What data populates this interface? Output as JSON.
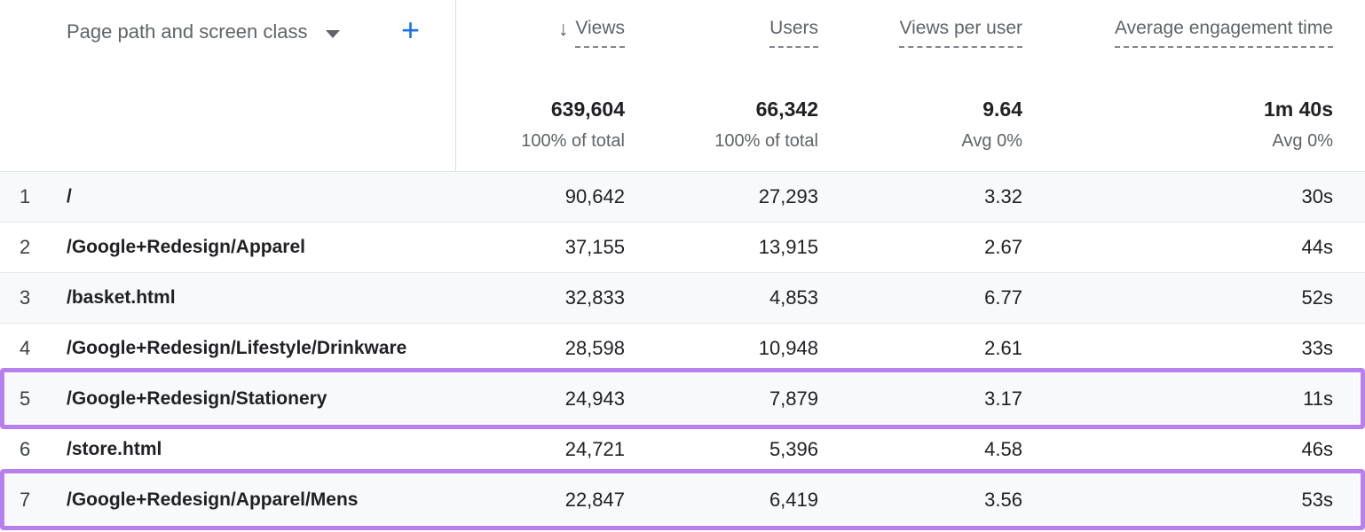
{
  "colors": {
    "highlight_purple": "#b880ef",
    "add_button_blue": "#1a73e8",
    "header_gray": "#5f6368",
    "row_alt_gray": "#f8f9fa"
  },
  "table": {
    "dimension_header": {
      "label": "Page path and screen class",
      "add_label": "+"
    },
    "columns": [
      {
        "label": "Views",
        "sort_arrow": "↓",
        "total": "639,604",
        "subtotal": "100% of total"
      },
      {
        "label": "Users",
        "sort_arrow": "",
        "total": "66,342",
        "subtotal": "100% of total"
      },
      {
        "label": "Views per user",
        "sort_arrow": "",
        "total": "9.64",
        "subtotal": "Avg 0%"
      },
      {
        "label": "Average engagement time",
        "sort_arrow": "",
        "total": "1m 40s",
        "subtotal": "Avg 0%"
      }
    ],
    "rows": [
      {
        "index": "1",
        "path": "/",
        "views": "90,642",
        "users": "27,293",
        "views_per_user": "3.32",
        "avg_engagement_time": "30s",
        "highlighted": false
      },
      {
        "index": "2",
        "path": "/Google+Redesign/Apparel",
        "views": "37,155",
        "users": "13,915",
        "views_per_user": "2.67",
        "avg_engagement_time": "44s",
        "highlighted": false
      },
      {
        "index": "3",
        "path": "/basket.html",
        "views": "32,833",
        "users": "4,853",
        "views_per_user": "6.77",
        "avg_engagement_time": "52s",
        "highlighted": false
      },
      {
        "index": "4",
        "path": "/Google+Redesign/Lifestyle/Drinkware",
        "views": "28,598",
        "users": "10,948",
        "views_per_user": "2.61",
        "avg_engagement_time": "33s",
        "highlighted": false
      },
      {
        "index": "5",
        "path": "/Google+Redesign/Stationery",
        "views": "24,943",
        "users": "7,879",
        "views_per_user": "3.17",
        "avg_engagement_time": "11s",
        "highlighted": true
      },
      {
        "index": "6",
        "path": "/store.html",
        "views": "24,721",
        "users": "5,396",
        "views_per_user": "4.58",
        "avg_engagement_time": "46s",
        "highlighted": false
      },
      {
        "index": "7",
        "path": "/Google+Redesign/Apparel/Mens",
        "views": "22,847",
        "users": "6,419",
        "views_per_user": "3.56",
        "avg_engagement_time": "53s",
        "highlighted": true
      }
    ]
  }
}
